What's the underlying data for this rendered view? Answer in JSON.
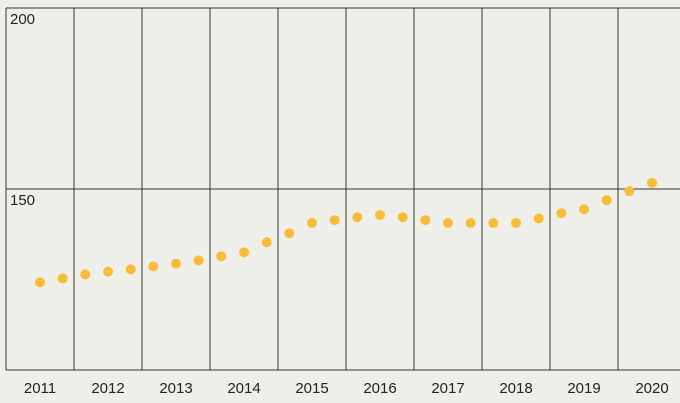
{
  "chart_data": {
    "type": "scatter",
    "categories": [
      "2011",
      null,
      null,
      "2012",
      null,
      null,
      "2013",
      null,
      null,
      "2014",
      null,
      null,
      "2015",
      null,
      null,
      "2016",
      null,
      null,
      "2017",
      null,
      null,
      "2018",
      null,
      null,
      "2019",
      null,
      null,
      "2020"
    ],
    "values": [
      124.2,
      125.3,
      126.4,
      127.2,
      127.8,
      128.6,
      129.4,
      130.3,
      131.4,
      132.5,
      135.3,
      137.8,
      140.6,
      141.4,
      142.2,
      142.8,
      142.2,
      141.4,
      140.6,
      140.6,
      140.6,
      140.6,
      141.9,
      143.3,
      144.4,
      146.9,
      149.4,
      151.7
    ],
    "color": "#f9bc3a",
    "ylim": [
      100,
      200
    ],
    "yticks": [
      150,
      200
    ],
    "grid": true
  }
}
